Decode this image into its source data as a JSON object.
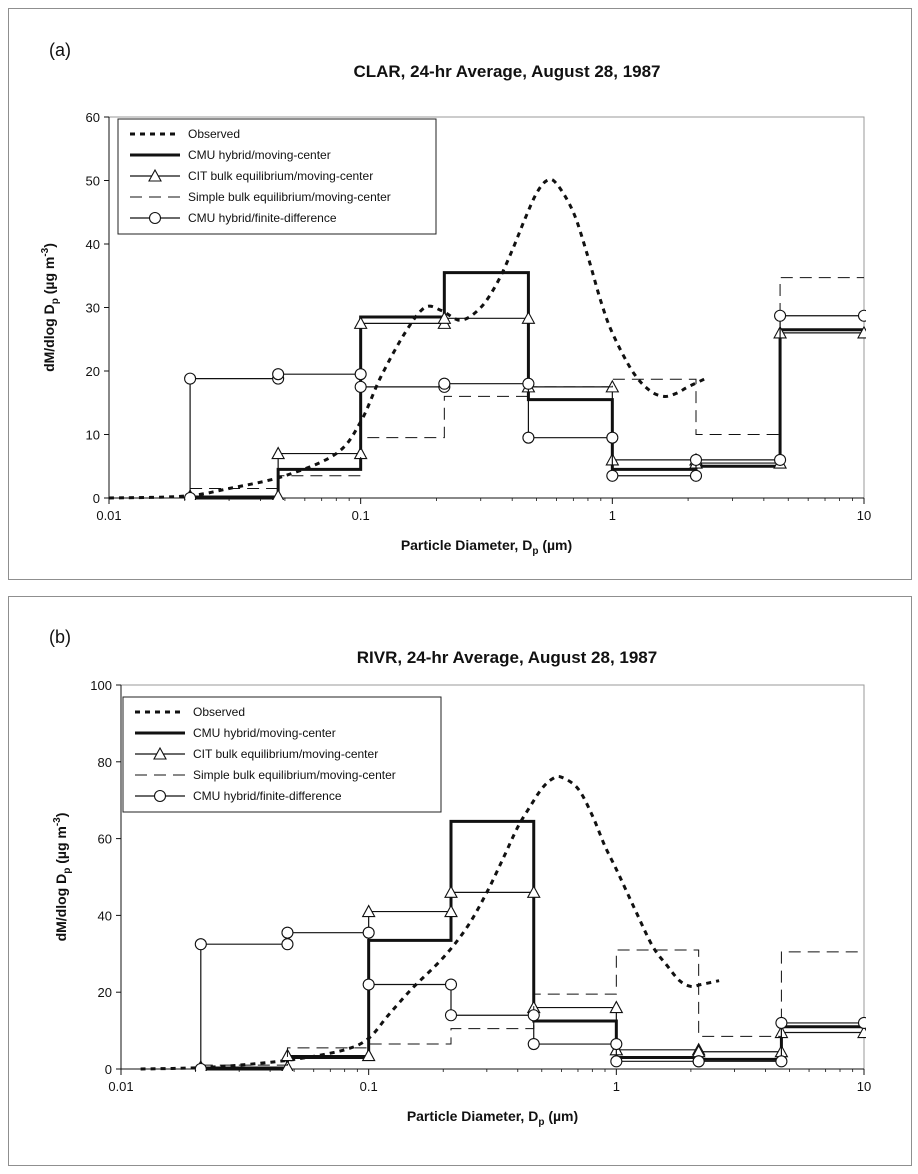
{
  "chart_data": [
    {
      "type": "line",
      "panel_label": "(a)",
      "title": "CLAR, 24-hr Average, August 28, 1987",
      "xlabel": "Particle Diameter, D",
      "xlabel_sub": "p",
      "xlabel_unit": " (µm)",
      "ylabel": "dM/dlog D",
      "ylabel_sub": "p",
      "ylabel_unit": " (µg m",
      "ylabel_sup": "-3",
      "ylabel_close": ")",
      "xscale": "log",
      "xlim": [
        0.01,
        10
      ],
      "ylim": [
        0,
        60
      ],
      "xticks": [
        "0.01",
        "0.1",
        "1",
        "10"
      ],
      "yticks": [
        "0",
        "10",
        "20",
        "30",
        "40",
        "50",
        "60"
      ],
      "legend_position": "top-left",
      "series": [
        {
          "name": "Observed",
          "style": "dotted-bold",
          "marker": "none",
          "x": [
            0.01,
            0.02,
            0.03,
            0.05,
            0.08,
            0.1,
            0.12,
            0.15,
            0.18,
            0.21,
            0.25,
            0.3,
            0.35,
            0.4,
            0.45,
            0.5,
            0.55,
            0.6,
            0.7,
            0.8,
            0.9,
            1.0,
            1.2,
            1.4,
            1.6,
            1.8,
            2.0,
            2.4
          ],
          "y": [
            0,
            0.3,
            1.5,
            3.5,
            7,
            12,
            19,
            26,
            30,
            29.5,
            28,
            30,
            34,
            39,
            44,
            48,
            50,
            49.5,
            45,
            38,
            31,
            26,
            20,
            17,
            16,
            16.5,
            17.5,
            19
          ]
        },
        {
          "name": "CMU hybrid/moving-center",
          "style": "solid-bold",
          "marker": "none",
          "x": [
            0.021,
            0.047,
            0.047,
            0.1,
            0.1,
            0.215,
            0.215,
            0.464,
            0.464,
            1.0,
            1.0,
            2.15,
            2.15,
            4.64,
            4.64,
            10
          ],
          "y": [
            0,
            0,
            4.5,
            4.5,
            28.5,
            28.5,
            35.5,
            35.5,
            15.5,
            15.5,
            4.5,
            4.5,
            5,
            5,
            26.5,
            26.5
          ]
        },
        {
          "name": "CIT bulk equilibrium/moving-center",
          "style": "solid-thin",
          "marker": "triangle",
          "x": [
            0.021,
            0.047,
            0.047,
            0.1,
            0.1,
            0.215,
            0.215,
            0.464,
            0.464,
            1.0,
            1.0,
            2.15,
            2.15,
            4.64,
            4.64,
            10
          ],
          "y": [
            0.3,
            0.3,
            7,
            7,
            27.5,
            27.5,
            28.3,
            28.3,
            17.5,
            17.5,
            6,
            6,
            5.5,
            5.5,
            26,
            26
          ]
        },
        {
          "name": "Simple bulk equilibrium/moving-center",
          "style": "dashed",
          "marker": "none",
          "x": [
            0.021,
            0.047,
            0.047,
            0.1,
            0.1,
            0.215,
            0.215,
            0.464,
            0.464,
            1.0,
            1.0,
            2.15,
            2.15,
            4.64,
            4.64,
            10
          ],
          "y": [
            1.5,
            1.5,
            3.5,
            3.5,
            9.5,
            9.5,
            16,
            16,
            17.5,
            17.5,
            18.7,
            18.7,
            10,
            10,
            34.7,
            34.7
          ]
        },
        {
          "name": "CMU hybrid/finite-difference",
          "style": "solid-thin",
          "marker": "circle",
          "x": [
            0.021,
            0.021,
            0.047,
            0.047,
            0.1,
            0.1,
            0.215,
            0.215,
            0.464,
            0.464,
            1.0,
            1.0,
            2.15,
            2.15,
            4.64,
            4.64,
            10
          ],
          "y": [
            0,
            18.8,
            18.8,
            19.5,
            19.5,
            17.5,
            17.5,
            18,
            18,
            9.5,
            9.5,
            3.5,
            3.5,
            6,
            6,
            28.7,
            28.7
          ]
        }
      ]
    },
    {
      "type": "line",
      "panel_label": "(b)",
      "title": "RIVR, 24-hr Average, August 28, 1987",
      "xlabel": "Particle Diameter, D",
      "xlabel_sub": "p",
      "xlabel_unit": " (µm)",
      "ylabel": "dM/dlog D",
      "ylabel_sub": "p",
      "ylabel_unit": " (µg m",
      "ylabel_sup": "-3",
      "ylabel_close": ")",
      "xscale": "log",
      "xlim": [
        0.01,
        10
      ],
      "ylim": [
        0,
        100
      ],
      "xticks": [
        "0.01",
        "0.1",
        "1",
        "10"
      ],
      "yticks": [
        "0",
        "20",
        "40",
        "60",
        "80",
        "100"
      ],
      "legend_position": "top-left",
      "series": [
        {
          "name": "Observed",
          "style": "dotted-bold",
          "marker": "none",
          "x": [
            0.012,
            0.02,
            0.03,
            0.05,
            0.08,
            0.1,
            0.12,
            0.15,
            0.2,
            0.25,
            0.3,
            0.35,
            0.4,
            0.45,
            0.5,
            0.55,
            0.6,
            0.7,
            0.8,
            0.9,
            1.0,
            1.2,
            1.4,
            1.6,
            1.8,
            2.0,
            2.2,
            2.6
          ],
          "y": [
            0,
            0.3,
            1,
            2.5,
            5,
            8,
            14,
            21,
            29,
            37,
            46,
            55,
            63,
            68.5,
            73,
            75.5,
            76,
            73,
            66,
            58,
            52,
            41,
            32,
            27,
            23,
            21.5,
            22,
            23
          ]
        },
        {
          "name": "CMU hybrid/moving-center",
          "style": "solid-bold",
          "marker": "none",
          "x": [
            0.021,
            0.047,
            0.047,
            0.1,
            0.1,
            0.215,
            0.215,
            0.464,
            0.464,
            1.0,
            1.0,
            2.15,
            2.15,
            4.64,
            4.64,
            10
          ],
          "y": [
            0,
            0,
            3,
            3,
            33.5,
            33.5,
            64.5,
            64.5,
            12.5,
            12.5,
            3,
            3,
            2.5,
            2.5,
            11,
            11
          ]
        },
        {
          "name": "CIT bulk equilibrium/moving-center",
          "style": "solid-thin",
          "marker": "triangle",
          "x": [
            0.021,
            0.047,
            0.047,
            0.1,
            0.1,
            0.215,
            0.215,
            0.464,
            0.464,
            1.0,
            1.0,
            2.15,
            2.15,
            4.64,
            4.64,
            10
          ],
          "y": [
            0.5,
            0.5,
            3.5,
            3.5,
            41,
            41,
            46,
            46,
            16,
            16,
            5,
            5,
            4.5,
            4.5,
            9.5,
            9.5
          ]
        },
        {
          "name": "Simple bulk equilibrium/moving-center",
          "style": "dashed",
          "marker": "none",
          "x": [
            0.021,
            0.047,
            0.047,
            0.1,
            0.1,
            0.215,
            0.215,
            0.464,
            0.464,
            1.0,
            1.0,
            2.15,
            2.15,
            4.64,
            4.64,
            10
          ],
          "y": [
            1,
            1,
            5.5,
            5.5,
            6.5,
            6.5,
            10.5,
            10.5,
            19.5,
            19.5,
            31,
            31,
            8.5,
            8.5,
            30.5,
            30.5
          ]
        },
        {
          "name": "CMU hybrid/finite-difference",
          "style": "solid-thin",
          "marker": "circle",
          "x": [
            0.021,
            0.021,
            0.047,
            0.047,
            0.1,
            0.1,
            0.215,
            0.215,
            0.464,
            0.464,
            1.0,
            1.0,
            2.15,
            2.15,
            4.64,
            4.64,
            10
          ],
          "y": [
            0,
            32.5,
            32.5,
            35.5,
            35.5,
            22,
            22,
            14,
            14,
            6.5,
            6.5,
            2,
            2,
            2,
            2,
            12,
            12
          ]
        }
      ]
    }
  ]
}
